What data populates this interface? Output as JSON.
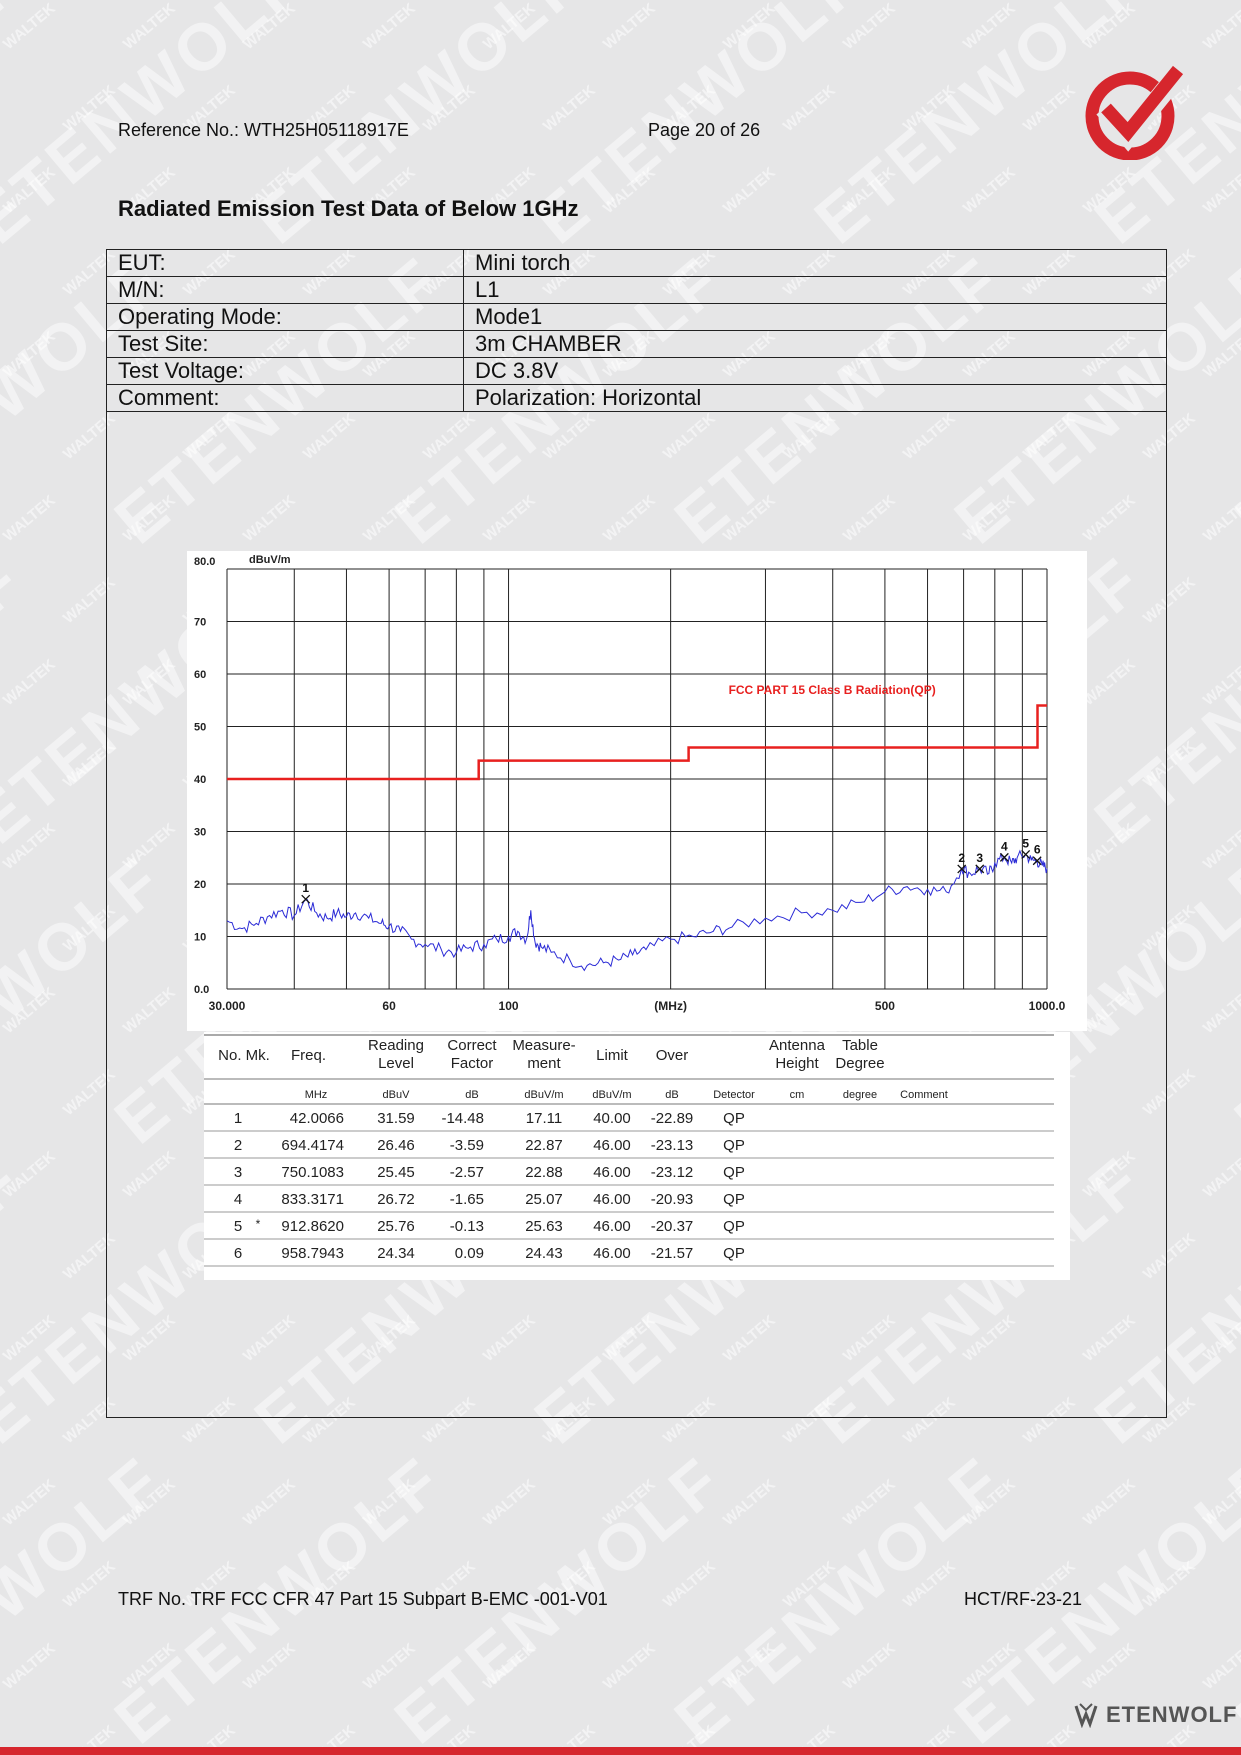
{
  "header": {
    "reference": "Reference No.: WTH25H05118917E",
    "page": "Page 20 of 26",
    "title": "Radiated Emission Test Data of Below 1GHz"
  },
  "info_rows": [
    {
      "label": "EUT:",
      "value": "Mini torch"
    },
    {
      "label": "M/N:",
      "value": "L1"
    },
    {
      "label": "Operating Mode:",
      "value": "Mode1"
    },
    {
      "label": "Test Site:",
      "value": "3m CHAMBER"
    },
    {
      "label": "Test Voltage:",
      "value": "DC 3.8V"
    },
    {
      "label": "Comment:",
      "value": "Polarization: Horizontal"
    }
  ],
  "chart_data": {
    "type": "line",
    "ylabel": "dBuV/m",
    "xlabel": "(MHz)",
    "x_scale": "log",
    "xlim": [
      30,
      1000
    ],
    "ylim": [
      0,
      80
    ],
    "y_ticks": [
      "0.0",
      "10",
      "20",
      "30",
      "40",
      "50",
      "60",
      "70",
      "80.0"
    ],
    "x_tick_labels": [
      {
        "x": 30,
        "label": "30.000"
      },
      {
        "x": 60,
        "label": "60"
      },
      {
        "x": 100,
        "label": "100"
      },
      {
        "x": 500,
        "label": "500"
      },
      {
        "x": 1000,
        "label": "1000.0"
      }
    ],
    "grid": true,
    "limit_line": {
      "name": "FCC PART 15 Class B Radiation(QP)",
      "color": "#e8201f",
      "points": [
        [
          30,
          40
        ],
        [
          88,
          40
        ],
        [
          88,
          43.5
        ],
        [
          216,
          43.5
        ],
        [
          216,
          46
        ],
        [
          960,
          46
        ],
        [
          960,
          54
        ],
        [
          1000,
          54
        ]
      ]
    },
    "trace": {
      "color": "#2b2bd6",
      "points": [
        [
          30,
          13
        ],
        [
          32,
          11.5
        ],
        [
          34,
          12.5
        ],
        [
          36,
          14
        ],
        [
          38,
          15
        ],
        [
          40,
          14
        ],
        [
          42,
          17
        ],
        [
          44,
          14.5
        ],
        [
          46,
          13.5
        ],
        [
          48,
          14.5
        ],
        [
          50,
          13.8
        ],
        [
          52,
          14.5
        ],
        [
          55,
          13.5
        ],
        [
          58,
          12.5
        ],
        [
          60,
          12
        ],
        [
          63,
          11
        ],
        [
          66,
          9.5
        ],
        [
          70,
          8.5
        ],
        [
          75,
          7.5
        ],
        [
          80,
          7
        ],
        [
          85,
          8
        ],
        [
          90,
          8.5
        ],
        [
          95,
          9.5
        ],
        [
          100,
          10
        ],
        [
          104,
          11
        ],
        [
          108,
          9.5
        ],
        [
          110,
          15
        ],
        [
          112,
          9
        ],
        [
          115,
          8
        ],
        [
          120,
          7
        ],
        [
          130,
          5.5
        ],
        [
          140,
          4.5
        ],
        [
          150,
          5
        ],
        [
          160,
          5.5
        ],
        [
          170,
          6.5
        ],
        [
          180,
          7.5
        ],
        [
          200,
          9.5
        ],
        [
          220,
          10
        ],
        [
          240,
          11
        ],
        [
          260,
          11.8
        ],
        [
          300,
          13.5
        ],
        [
          350,
          14.5
        ],
        [
          400,
          15
        ],
        [
          450,
          16.5
        ],
        [
          500,
          18.5
        ],
        [
          550,
          19.5
        ],
        [
          600,
          19
        ],
        [
          650,
          18.5
        ],
        [
          694,
          22.9
        ],
        [
          720,
          22
        ],
        [
          750,
          22.9
        ],
        [
          780,
          22
        ],
        [
          800,
          24
        ],
        [
          833,
          25.1
        ],
        [
          860,
          24
        ],
        [
          880,
          25
        ],
        [
          912,
          25.6
        ],
        [
          935,
          24.5
        ],
        [
          958,
          24.4
        ],
        [
          980,
          23.5
        ],
        [
          1000,
          23
        ]
      ]
    },
    "markers": [
      {
        "no": "1",
        "x": 42.0066,
        "y": 17.11
      },
      {
        "no": "2",
        "x": 694.4174,
        "y": 22.87
      },
      {
        "no": "3",
        "x": 750.1083,
        "y": 22.88
      },
      {
        "no": "4",
        "x": 833.3171,
        "y": 25.07
      },
      {
        "no": "5",
        "x": 912.862,
        "y": 25.63
      },
      {
        "no": "6",
        "x": 958.7943,
        "y": 24.43
      }
    ]
  },
  "measurement_table": {
    "headers": [
      {
        "key": "no",
        "lines": [
          "No. Mk."
        ]
      },
      {
        "key": "freq",
        "lines": [
          "Freq."
        ]
      },
      {
        "key": "reading",
        "lines": [
          "Reading",
          "Level"
        ]
      },
      {
        "key": "correct",
        "lines": [
          "Correct",
          "Factor"
        ]
      },
      {
        "key": "measure",
        "lines": [
          "Measure-",
          "ment"
        ]
      },
      {
        "key": "limit",
        "lines": [
          "Limit"
        ]
      },
      {
        "key": "over",
        "lines": [
          "Over"
        ]
      },
      {
        "key": "detector",
        "lines": [
          ""
        ]
      },
      {
        "key": "antenna",
        "lines": [
          "Antenna",
          "Height"
        ]
      },
      {
        "key": "table",
        "lines": [
          "Table",
          "Degree"
        ]
      },
      {
        "key": "comment",
        "lines": [
          ""
        ]
      }
    ],
    "units": [
      "",
      "MHz",
      "dBuV",
      "dB",
      "dBuV/m",
      "dBuV/m",
      "dB",
      "Detector",
      "cm",
      "degree",
      "Comment"
    ],
    "rows": [
      {
        "no": "1",
        "mk": "",
        "freq": "42.0066",
        "reading": "31.59",
        "correct": "-14.48",
        "measure": "17.11",
        "limit": "40.00",
        "over": "-22.89",
        "detector": "QP"
      },
      {
        "no": "2",
        "mk": "",
        "freq": "694.4174",
        "reading": "26.46",
        "correct": "-3.59",
        "measure": "22.87",
        "limit": "46.00",
        "over": "-23.13",
        "detector": "QP"
      },
      {
        "no": "3",
        "mk": "",
        "freq": "750.1083",
        "reading": "25.45",
        "correct": "-2.57",
        "measure": "22.88",
        "limit": "46.00",
        "over": "-23.12",
        "detector": "QP"
      },
      {
        "no": "4",
        "mk": "",
        "freq": "833.3171",
        "reading": "26.72",
        "correct": "-1.65",
        "measure": "25.07",
        "limit": "46.00",
        "over": "-20.93",
        "detector": "QP"
      },
      {
        "no": "5",
        "mk": "*",
        "freq": "912.8620",
        "reading": "25.76",
        "correct": "-0.13",
        "measure": "25.63",
        "limit": "46.00",
        "over": "-20.37",
        "detector": "QP"
      },
      {
        "no": "6",
        "mk": "",
        "freq": "958.7943",
        "reading": "24.34",
        "correct": "0.09",
        "measure": "24.43",
        "limit": "46.00",
        "over": "-21.57",
        "detector": "QP"
      }
    ]
  },
  "footer": {
    "trf": "TRF No. TRF FCC CFR 47 Part 15 Subpart B-EMC -001-V01",
    "code": "HCT/RF-23-21",
    "brand": "ETENWOLF"
  },
  "watermark": {
    "small": "WALTEK",
    "big": "ETENWOLF"
  },
  "colors": {
    "brand_red": "#d6262d",
    "limit_line": "#e8201f",
    "trace": "#2b2bd6"
  }
}
